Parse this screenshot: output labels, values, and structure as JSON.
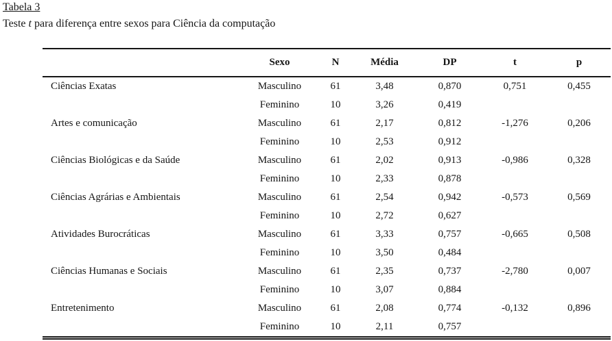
{
  "document": {
    "table_label": "Tabela 3",
    "caption": {
      "prefix": "Teste ",
      "italic_term": "t",
      "suffix": " para diferença entre sexos para Ciência da computação"
    }
  },
  "table": {
    "headers": {
      "category": "",
      "sexo": "Sexo",
      "n": "N",
      "media": "Média",
      "dp": "DP",
      "t": "t",
      "p": "p"
    },
    "groups": [
      {
        "category": "Ciências Exatas",
        "rows": [
          {
            "sexo": "Masculino",
            "n": "61",
            "media": "3,48",
            "dp": "0,870",
            "t": "0,751",
            "p": "0,455"
          },
          {
            "sexo": "Feminino",
            "n": "10",
            "media": "3,26",
            "dp": "0,419",
            "t": "",
            "p": ""
          }
        ]
      },
      {
        "category": "Artes e comunicação",
        "rows": [
          {
            "sexo": "Masculino",
            "n": "61",
            "media": "2,17",
            "dp": "0,812",
            "t": "-1,276",
            "p": "0,206"
          },
          {
            "sexo": "Feminino",
            "n": "10",
            "media": "2,53",
            "dp": "0,912",
            "t": "",
            "p": ""
          }
        ]
      },
      {
        "category": "Ciências Biológicas e da Saúde",
        "rows": [
          {
            "sexo": "Masculino",
            "n": "61",
            "media": "2,02",
            "dp": "0,913",
            "t": "-0,986",
            "p": "0,328"
          },
          {
            "sexo": "Feminino",
            "n": "10",
            "media": "2,33",
            "dp": "0,878",
            "t": "",
            "p": ""
          }
        ]
      },
      {
        "category": "Ciências Agrárias e Ambientais",
        "rows": [
          {
            "sexo": "Masculino",
            "n": "61",
            "media": "2,54",
            "dp": "0,942",
            "t": "-0,573",
            "p": "0,569"
          },
          {
            "sexo": "Feminino",
            "n": "10",
            "media": "2,72",
            "dp": "0,627",
            "t": "",
            "p": ""
          }
        ]
      },
      {
        "category": "Atividades Burocráticas",
        "rows": [
          {
            "sexo": "Masculino",
            "n": "61",
            "media": "3,33",
            "dp": "0,757",
            "t": "-0,665",
            "p": "0,508"
          },
          {
            "sexo": "Feminino",
            "n": "10",
            "media": "3,50",
            "dp": "0,484",
            "t": "",
            "p": ""
          }
        ]
      },
      {
        "category": "Ciências Humanas e Sociais",
        "rows": [
          {
            "sexo": "Masculino",
            "n": "61",
            "media": "2,35",
            "dp": "0,737",
            "t": "-2,780",
            "p": "0,007"
          },
          {
            "sexo": "Feminino",
            "n": "10",
            "media": "3,07",
            "dp": "0,884",
            "t": "",
            "p": ""
          }
        ]
      },
      {
        "category": "Entretenimento",
        "rows": [
          {
            "sexo": "Masculino",
            "n": "61",
            "media": "2,08",
            "dp": "0,774",
            "t": "-0,132",
            "p": "0,896"
          },
          {
            "sexo": "Feminino",
            "n": "10",
            "media": "2,11",
            "dp": "0,757",
            "t": "",
            "p": ""
          }
        ]
      }
    ]
  },
  "colors": {
    "text": "#151515",
    "background": "#ffffff"
  }
}
